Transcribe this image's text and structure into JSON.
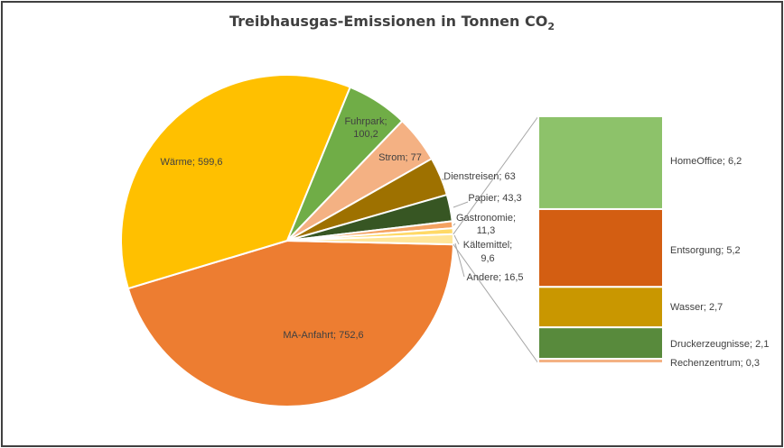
{
  "chart_data": {
    "type": "pie",
    "subtype": "bar-of-pie",
    "title_main": "Treibhausgas-Emissionen in Tonnen CO",
    "title_sub": "2",
    "slices": [
      {
        "name": "MA-Anfahrt",
        "value": 752.6,
        "label": "MA-Anfahrt; 752,6",
        "color": "#ED7D31"
      },
      {
        "name": "Wärme",
        "value": 599.6,
        "label": "Wärme; 599,6",
        "color": "#FFC000"
      },
      {
        "name": "Fuhrpark",
        "value": 100.2,
        "label_line1": "Fuhrpark;",
        "label_line2": "100,2",
        "color": "#70AD47"
      },
      {
        "name": "Strom",
        "value": 77,
        "label": "Strom; 77",
        "color": "#F4B183"
      },
      {
        "name": "Dienstreisen",
        "value": 63,
        "label": "Dienstreisen; 63",
        "color": "#9E7100"
      },
      {
        "name": "Papier",
        "value": 43.3,
        "label": "Papier; 43,3",
        "color": "#375623"
      },
      {
        "name": "Gastronomie",
        "value": 11.3,
        "label_line1": "Gastronomie;",
        "label_line2": "11,3",
        "color": "#F4A261"
      },
      {
        "name": "Kältemittel",
        "value": 9.6,
        "label_line1": "Kältemittel;",
        "label_line2": "9,6",
        "color": "#FFD966"
      },
      {
        "name": "Andere",
        "value": 16.5,
        "label": "Andere; 16,5",
        "color": "#FFE699"
      }
    ],
    "andere_breakdown": [
      {
        "name": "HomeOffice",
        "value": 6.2,
        "label": "HomeOffice; 6,2",
        "color": "#8DC26A"
      },
      {
        "name": "Entsorgung",
        "value": 5.2,
        "label": "Entsorgung; 5,2",
        "color": "#D35E12"
      },
      {
        "name": "Wasser",
        "value": 2.7,
        "label": "Wasser; 2,7",
        "color": "#C99700"
      },
      {
        "name": "Druckerzeugnisse",
        "value": 2.1,
        "label": "Druckerzeugnisse; 2,1",
        "color": "#588A3C"
      },
      {
        "name": "Rechenzentrum",
        "value": 0.3,
        "label": "Rechenzentrum; 0,3",
        "color": "#F4B183"
      }
    ]
  }
}
